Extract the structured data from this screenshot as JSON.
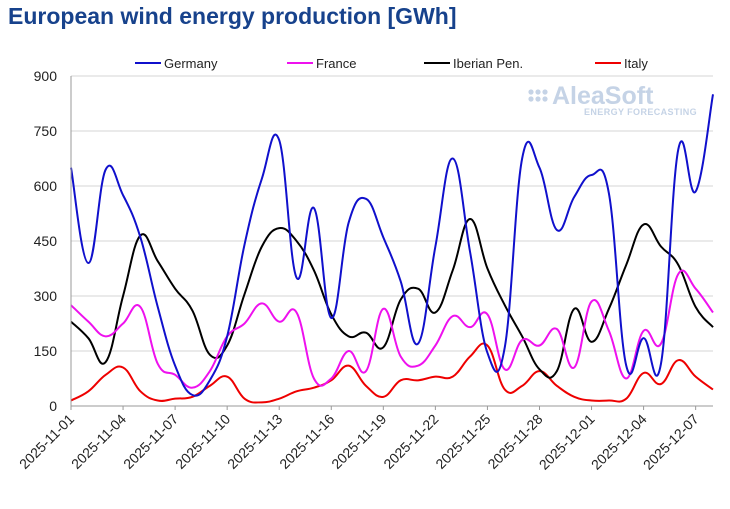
{
  "chart_data": {
    "type": "line",
    "title": "European wind energy production [GWh]",
    "xlabel": "",
    "ylabel": "",
    "ylim": [
      0,
      900
    ],
    "yticks": [
      0,
      150,
      300,
      450,
      600,
      750,
      900
    ],
    "x": [
      "2025-11-01",
      "2025-11-02",
      "2025-11-03",
      "2025-11-04",
      "2025-11-05",
      "2025-11-06",
      "2025-11-07",
      "2025-11-08",
      "2025-11-09",
      "2025-11-10",
      "2025-11-11",
      "2025-11-12",
      "2025-11-13",
      "2025-11-14",
      "2025-11-15",
      "2025-11-16",
      "2025-11-17",
      "2025-11-18",
      "2025-11-19",
      "2025-11-20",
      "2025-11-21",
      "2025-11-22",
      "2025-11-23",
      "2025-11-24",
      "2025-11-25",
      "2025-11-26",
      "2025-11-27",
      "2025-11-28",
      "2025-11-29",
      "2025-11-30",
      "2025-12-01",
      "2025-12-02",
      "2025-12-03",
      "2025-12-04",
      "2025-12-05",
      "2025-12-06",
      "2025-12-07",
      "2025-12-08"
    ],
    "xtick_labels": [
      "2025-11-01",
      "2025-11-04",
      "2025-11-07",
      "2025-11-10",
      "2025-11-13",
      "2025-11-16",
      "2025-11-19",
      "2025-11-22",
      "2025-11-25",
      "2025-11-28",
      "2025-12-01",
      "2025-12-04",
      "2025-12-07"
    ],
    "grid": true,
    "legend_position": "top",
    "series": [
      {
        "name": "Germany",
        "color": "#1010cc",
        "values": [
          650,
          390,
          645,
          575,
          460,
          270,
          110,
          30,
          70,
          190,
          440,
          620,
          725,
          350,
          540,
          240,
          500,
          565,
          460,
          340,
          170,
          435,
          675,
          420,
          145,
          160,
          675,
          650,
          480,
          570,
          630,
          580,
          110,
          185,
          115,
          700,
          585,
          850
        ]
      },
      {
        "name": "France",
        "color": "#ee11ee",
        "values": [
          275,
          230,
          190,
          225,
          270,
          115,
          85,
          50,
          95,
          190,
          225,
          280,
          230,
          255,
          75,
          75,
          150,
          95,
          265,
          135,
          110,
          165,
          245,
          215,
          250,
          100,
          180,
          165,
          210,
          105,
          285,
          205,
          75,
          205,
          170,
          360,
          320,
          255
        ]
      },
      {
        "name": "Iberian Pen.",
        "color": "#000000",
        "values": [
          230,
          185,
          120,
          300,
          465,
          395,
          320,
          260,
          140,
          165,
          305,
          435,
          485,
          450,
          370,
          250,
          190,
          200,
          160,
          290,
          320,
          255,
          370,
          510,
          375,
          275,
          190,
          100,
          95,
          265,
          175,
          265,
          385,
          495,
          435,
          385,
          270,
          215
        ]
      },
      {
        "name": "Italy",
        "color": "#ee0000",
        "values": [
          15,
          40,
          85,
          105,
          40,
          15,
          20,
          25,
          55,
          80,
          20,
          10,
          20,
          40,
          50,
          70,
          110,
          55,
          25,
          70,
          70,
          80,
          80,
          135,
          165,
          45,
          55,
          95,
          55,
          25,
          15,
          15,
          20,
          90,
          60,
          125,
          80,
          45
        ]
      }
    ]
  },
  "watermark": {
    "brand": "AleaSoft",
    "tagline": "ENERGY FORECASTING"
  }
}
